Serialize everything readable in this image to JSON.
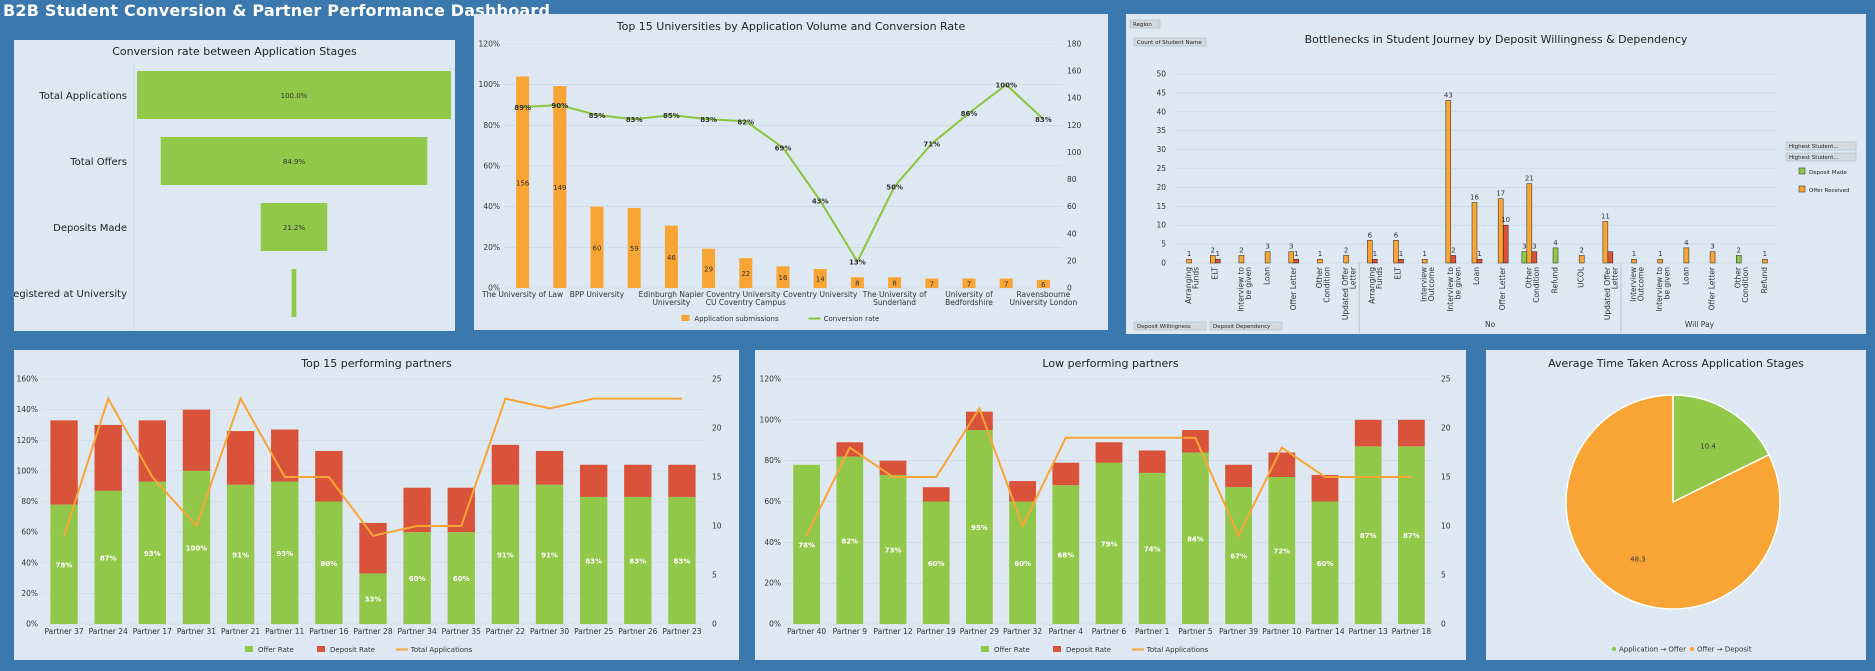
{
  "dashboard_title": "B2B Student Conversion & Partner Performance Dashboard",
  "colors": {
    "orange": "#f9a535",
    "green": "#92c84a",
    "red": "#d9533a",
    "line": "#8cc43c",
    "panel": "#dde8f3",
    "grid": "#c7d3e0"
  },
  "chart_data": [
    {
      "id": "funnel",
      "type": "bar",
      "title": "Conversion rate between Application Stages",
      "categories": [
        "Total Applications",
        "Total Offers",
        "Deposits Made",
        "Registered at University"
      ],
      "values": [
        100.0,
        84.9,
        21.2,
        1.5
      ],
      "data_labels": [
        "100.0%",
        "84.9%",
        "21.2%",
        ""
      ]
    },
    {
      "id": "universities",
      "type": "bar",
      "title": "Top 15 Universities by Application Volume and Conversion Rate",
      "categories": [
        "The University of Law",
        "",
        "BPP University",
        "",
        "Edinburgh Napier University",
        "",
        "Coventry University - CU Coventry Campus",
        "",
        "Coventry University",
        "",
        "The University of Sunderland",
        "",
        "University of Bedfordshire",
        "",
        "Ravensbourne University London"
      ],
      "left_ticks": [
        "0%",
        "20%",
        "40%",
        "60%",
        "80%",
        "100%",
        "120%"
      ],
      "right_ticks": [
        "0",
        "20",
        "40",
        "60",
        "80",
        "100",
        "120",
        "140",
        "160",
        "180"
      ],
      "series": [
        {
          "name": "Application submissions",
          "type": "bar",
          "axis": "right",
          "values": [
            156,
            149,
            60,
            59,
            46,
            29,
            22,
            16,
            14,
            8,
            8,
            7,
            7,
            7,
            6
          ],
          "labels": [
            "156",
            "149",
            "60",
            "59",
            "46",
            "29",
            "22",
            "16",
            "14",
            "8",
            "8",
            "7",
            "7",
            "7",
            "6"
          ]
        },
        {
          "name": "Conversion rate",
          "type": "line",
          "axis": "left",
          "values": [
            89,
            90,
            85,
            83,
            85,
            83,
            82,
            69,
            43,
            13,
            50,
            71,
            86,
            100,
            83
          ],
          "labels": [
            "89%",
            "90%",
            "85%",
            "83%",
            "85%",
            "83%",
            "82%",
            "69%",
            "43%",
            "13%",
            "50%",
            "71%",
            "86%",
            "100%",
            "83%"
          ]
        }
      ],
      "ylim_left": [
        0,
        120
      ],
      "ylim_right": [
        0,
        180
      ],
      "legend": "bottom"
    },
    {
      "id": "bottlenecks",
      "type": "bar",
      "title": "Bottlenecks in Student Journey by Deposit Willingness & Dependency",
      "filters": [
        "Region",
        "Count of Student Name",
        "Deposit Willingness",
        "Deposit Dependency",
        "Highest Student...",
        "Highest Student..."
      ],
      "groups": [
        {
          "name": "",
          "categories": [
            "Arranging Funds",
            "ELT",
            "Interview to be given",
            "Loan",
            "Offer Letter",
            "Other Condition",
            "Updated Offer Letter"
          ]
        },
        {
          "name": "No",
          "categories": [
            "Arranging Funds",
            "ELT",
            "Interview Outcome",
            "Interview to be given",
            "Loan",
            "Offer Letter",
            "Other Condition",
            "Refund",
            "UCOL",
            "Updated Offer Letter"
          ]
        },
        {
          "name": "Will Pay",
          "categories": [
            "Interview Outcome",
            "Interview to be given",
            "Loan",
            "Offer Letter",
            "Other Condition",
            "Refund"
          ]
        }
      ],
      "series": [
        {
          "name": "Deposit Made",
          "values": [
            0,
            0,
            0,
            0,
            0,
            0,
            0,
            0,
            0,
            0,
            0,
            0,
            0,
            3,
            4,
            0,
            0,
            0,
            0,
            0,
            0,
            2,
            0,
            0
          ],
          "labels": [
            "",
            "",
            "",
            "",
            "",
            "",
            "",
            "",
            "",
            "",
            "",
            "",
            "",
            "3",
            "4",
            "",
            "",
            "",
            "",
            "",
            "",
            "2",
            "",
            ""
          ]
        },
        {
          "name": "Offer Received",
          "values": [
            1,
            2,
            2,
            3,
            3,
            1,
            2,
            6,
            6,
            1,
            43,
            16,
            17,
            21,
            0,
            2,
            11,
            1,
            1,
            4,
            3,
            0,
            1,
            1
          ],
          "labels": [
            "1",
            "2",
            "2",
            "3",
            "3",
            "1",
            "2",
            "6",
            "6",
            "1",
            "43",
            "16",
            "17",
            "21",
            "",
            "2",
            "11",
            "1",
            "1",
            "4",
            "3",
            "",
            "1",
            "1"
          ]
        },
        {
          "name": "",
          "values": [
            0,
            1,
            0,
            0,
            1,
            0,
            0,
            1,
            1,
            0,
            2,
            1,
            10,
            3,
            0,
            0,
            3,
            0,
            0,
            0,
            0,
            0,
            0,
            1
          ],
          "labels": [
            "",
            "1",
            "",
            "",
            "1",
            "",
            "",
            "1",
            "1",
            "",
            "2",
            "1",
            "10",
            "3",
            "",
            "",
            "",
            "",
            "",
            "",
            "",
            "",
            "",
            "1"
          ]
        }
      ],
      "yticks": [
        "0",
        "5",
        "10",
        "15",
        "20",
        "25",
        "30",
        "35",
        "40",
        "45",
        "50"
      ],
      "ylim": [
        0,
        50
      ],
      "legend": "right"
    },
    {
      "id": "top_partners",
      "type": "bar",
      "title": "Top 15 performing partners",
      "categories": [
        "Partner 37",
        "Partner 24",
        "Partner 17",
        "Partner 31",
        "Partner 21",
        "Partner 11",
        "Partner 16",
        "Partner 28",
        "Partner 34",
        "Partner 35",
        "Partner 22",
        "Partner 30",
        "Partner 25",
        "Partner 26",
        "Partner 23"
      ],
      "left_ticks": [
        "0%",
        "20%",
        "40%",
        "60%",
        "80%",
        "100%",
        "120%",
        "140%",
        "160%"
      ],
      "right_ticks": [
        "0",
        "5",
        "10",
        "15",
        "20",
        "25"
      ],
      "series": [
        {
          "name": "Offer Rate",
          "values": [
            78,
            87,
            93,
            100,
            91,
            93,
            80,
            33,
            60,
            60,
            91,
            91,
            83,
            83,
            83
          ],
          "labels": [
            "78%",
            "87%",
            "93%",
            "100%",
            "91%",
            "93%",
            "80%",
            "33%",
            "60%",
            "60%",
            "91%",
            "91%",
            "83%",
            "83%",
            "83%"
          ]
        },
        {
          "name": "Deposit Rate",
          "values": [
            55,
            43,
            40,
            40,
            35,
            34,
            33,
            33,
            29,
            29,
            26,
            22,
            21,
            21,
            21
          ]
        },
        {
          "name": "Total Applications",
          "type": "line",
          "axis": "right",
          "values": [
            9,
            23,
            15,
            10,
            23,
            15,
            15,
            9,
            10,
            10,
            23,
            22,
            23,
            23,
            23
          ]
        }
      ],
      "ylim_left": [
        0,
        160
      ],
      "ylim_right": [
        0,
        25
      ],
      "legend": "bottom"
    },
    {
      "id": "low_partners",
      "type": "bar",
      "title": "Low performing partners",
      "categories": [
        "Partner 40",
        "Partner 9",
        "Partner 12",
        "Partner 19",
        "Partner 29",
        "Partner 32",
        "Partner 4",
        "Partner 6",
        "Partner 1",
        "Partner 5",
        "Partner 39",
        "Partner 10",
        "Partner 14",
        "Partner 13",
        "Partner 18"
      ],
      "left_ticks": [
        "0%",
        "20%",
        "40%",
        "60%",
        "80%",
        "100%",
        "120%"
      ],
      "right_ticks": [
        "0",
        "5",
        "10",
        "15",
        "20",
        "25"
      ],
      "series": [
        {
          "name": "Offer Rate",
          "values": [
            78,
            82,
            73,
            60,
            95,
            60,
            68,
            79,
            74,
            84,
            67,
            72,
            60,
            87,
            87
          ],
          "labels": [
            "78%",
            "82%",
            "73%",
            "60%",
            "95%",
            "60%",
            "68%",
            "79%",
            "74%",
            "84%",
            "67%",
            "72%",
            "60%",
            "87%",
            "87%"
          ]
        },
        {
          "name": "Deposit Rate",
          "values": [
            0,
            7,
            7,
            7,
            9,
            10,
            11,
            10,
            11,
            11,
            11,
            12,
            13,
            13,
            13
          ]
        },
        {
          "name": "Total Applications",
          "type": "line",
          "axis": "right",
          "values": [
            9,
            18,
            15,
            15,
            22,
            10,
            19,
            19,
            19,
            19,
            9,
            18,
            15,
            15,
            15
          ]
        }
      ],
      "ylim_left": [
        0,
        120
      ],
      "ylim_right": [
        0,
        25
      ],
      "legend": "bottom"
    },
    {
      "id": "avg_time",
      "type": "pie",
      "title": "Average Time Taken Across Application Stages",
      "slices": [
        {
          "name": "Application → Offer",
          "value": 10.4,
          "label": "10.4"
        },
        {
          "name": "Offer → Deposit",
          "value": 48.3,
          "label": "48.3"
        }
      ],
      "legend": "bottom"
    }
  ]
}
